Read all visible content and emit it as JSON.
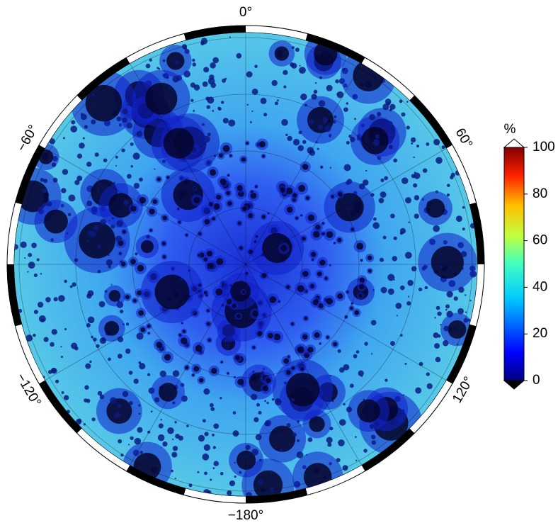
{
  "map": {
    "longitude_labels": [
      {
        "value": 0,
        "label": "0°"
      },
      {
        "value": 60,
        "label": "60°"
      },
      {
        "value": 120,
        "label": "120°"
      },
      {
        "value": -180,
        "label": "−180°"
      },
      {
        "value": -120,
        "label": "−120°"
      },
      {
        "value": -60,
        "label": "−60°"
      }
    ],
    "colorbar": {
      "unit": "%",
      "range": [
        0,
        100
      ],
      "ticks": [
        0,
        20,
        40,
        60,
        80,
        100
      ]
    }
  }
}
